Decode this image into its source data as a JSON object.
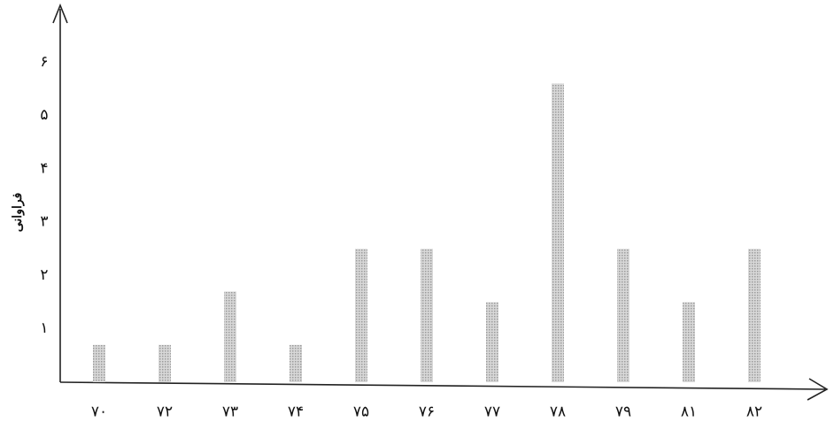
{
  "chart_data": {
    "type": "bar",
    "y_label": "فراوانی",
    "categories": [
      "۷۰",
      "۷۲",
      "۷۳",
      "۷۴",
      "۷۵",
      "۷۶",
      "۷۷",
      "۷۸",
      "۷۹",
      "۸۱",
      "۸۲"
    ],
    "values": [
      0.7,
      0.7,
      1.7,
      0.7,
      2.5,
      2.5,
      1.5,
      5.6,
      2.5,
      1.5,
      2.5
    ],
    "color": "#9c9c9c",
    "ylim": [
      0,
      7
    ],
    "yticks": [
      {
        "value": 1,
        "label": "۱"
      },
      {
        "value": 2,
        "label": "۲"
      },
      {
        "value": 3,
        "label": "۳"
      },
      {
        "value": 4,
        "label": "۴"
      },
      {
        "value": 5,
        "label": "۵"
      },
      {
        "value": 6,
        "label": "۶"
      }
    ],
    "grid": false
  }
}
